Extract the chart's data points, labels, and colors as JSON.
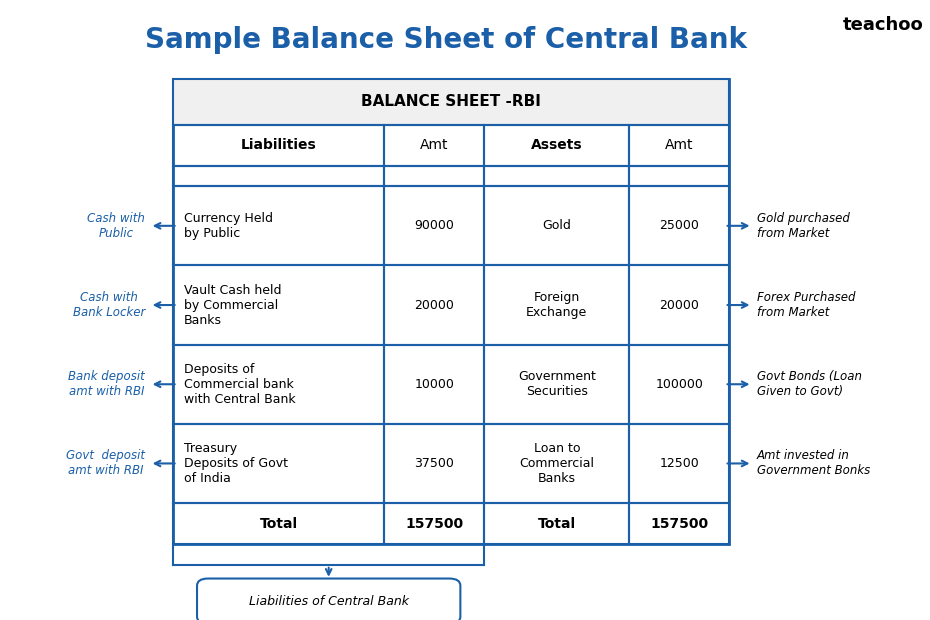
{
  "title": "Sample Balance Sheet of Central Bank",
  "title_color": "#1a5fa8",
  "title_fontsize": 20,
  "watermark": "teachoo",
  "table_header": "BALANCE SHEET -RBI",
  "col_headers": [
    "Liabilities",
    "Amt",
    "Assets",
    "Amt"
  ],
  "liabilities": [
    {
      "name": "Currency Held\nby Public",
      "amt": "90000"
    },
    {
      "name": "Vault Cash held\nby Commercial\nBanks",
      "amt": "20000"
    },
    {
      "name": "Deposits of\nCommercial bank\nwith Central Bank",
      "amt": "10000"
    },
    {
      "name": "Treasury\nDeposits of Govt\nof India",
      "amt": "37500"
    }
  ],
  "assets": [
    {
      "name": "Gold",
      "amt": "25000"
    },
    {
      "name": "Foreign\nExchange",
      "amt": "20000"
    },
    {
      "name": "Government\nSecurities",
      "amt": "100000"
    },
    {
      "name": "Loan to\nCommercial\nBanks",
      "amt": "12500"
    }
  ],
  "totals": [
    "Total",
    "157500",
    "Total",
    "157500"
  ],
  "left_labels": [
    "Cash with\nPublic",
    "Cash with\nBank Locker",
    "Bank deposit\namt with RBI",
    "Govt  deposit\namt with RBI"
  ],
  "right_labels": [
    "Gold purchased\nfrom Market",
    "Forex Purchased\nfrom Market",
    "Govt Bonds (Loan\nGiven to Govt)",
    "Amt invested in\nGovernment Bonks"
  ],
  "bottom_label": "Liabilities of Central Bank",
  "table_border_color": "#1a5fa8",
  "arrow_color": "#1a5fa8",
  "bg_color": "#ffffff",
  "text_color": "#000000"
}
